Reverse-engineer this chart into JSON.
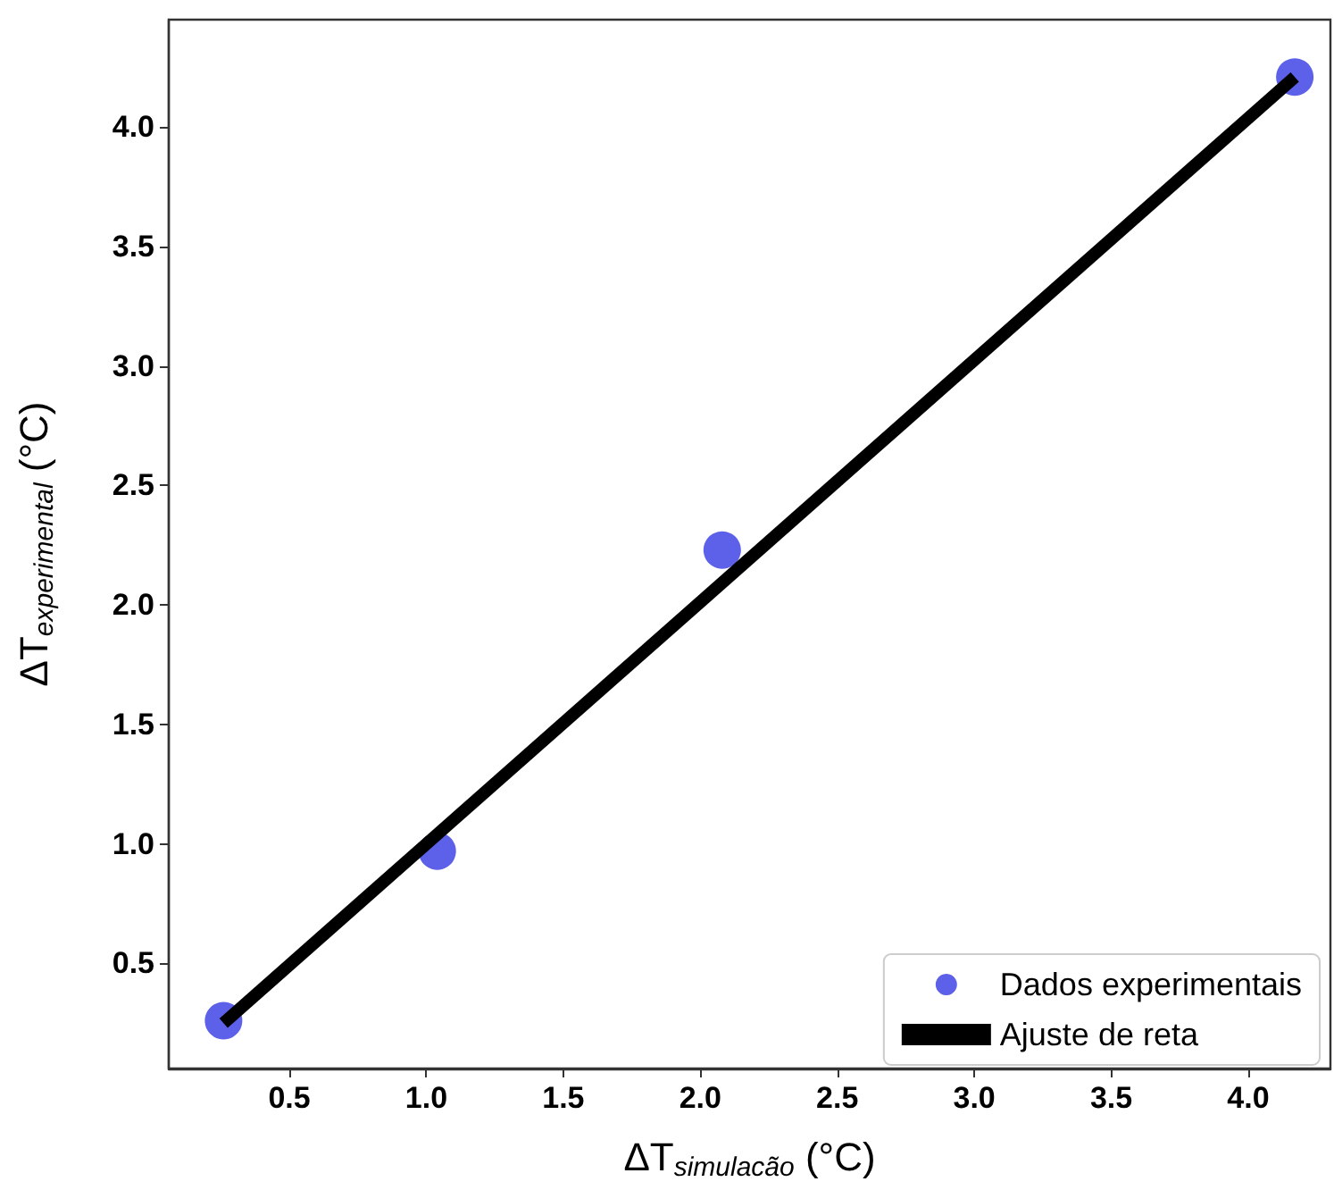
{
  "chart_data": {
    "type": "scatter",
    "xlabel": "ΔT$_{simulacão}$ (°C)",
    "ylabel": "ΔT$_{experimental}$ (°C)",
    "xlim": [
      0.06,
      4.3
    ],
    "ylim": [
      0.06,
      4.45
    ],
    "xticks": [
      0.5,
      {
        "value": 1,
        "label": "1.0"
      },
      1.5,
      {
        "value": 2,
        "label": "2.0"
      },
      2.5,
      {
        "value": 3,
        "label": "3.0"
      },
      3.5,
      {
        "value": 4,
        "label": "4.0"
      }
    ],
    "yticks": [
      0.5,
      {
        "value": 1,
        "label": "1.0"
      },
      1.5,
      {
        "value": 2,
        "label": "2.0"
      },
      2.5,
      {
        "value": 3,
        "label": "3.0"
      },
      3.5,
      {
        "value": 4,
        "label": "4.0"
      }
    ],
    "grid": false,
    "legend": "bottom right",
    "series": [
      {
        "name": "Dados experimentais",
        "marker": "circle",
        "color": "#5d60e8",
        "x": [
          0.26,
          1.04,
          2.08,
          4.17
        ],
        "values": [
          0.26,
          0.97,
          2.23,
          4.21
        ]
      },
      {
        "name": "Ajuste de reta",
        "type": "line",
        "line_style": "solid",
        "color": "#000000",
        "x": [
          0.26,
          4.17
        ],
        "values": [
          0.25,
          4.21
        ]
      }
    ]
  }
}
